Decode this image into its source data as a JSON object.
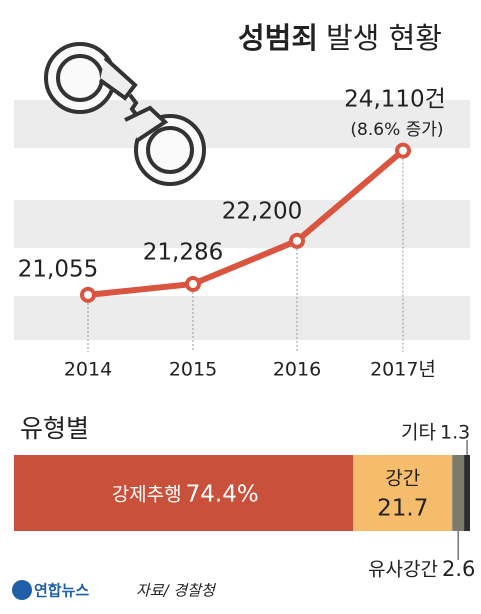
{
  "title_parts": [
    "성범죄",
    "발생 현황"
  ],
  "chart_data": [
    {
      "type": "line",
      "categories": [
        "2014",
        "2015",
        "2016",
        "2017년"
      ],
      "values": [
        21055,
        21286,
        22200,
        24110
      ],
      "value_labels": [
        "21,055",
        "21,286",
        "22,200",
        "24,110건"
      ],
      "annotation": "(8.6% 증가)",
      "color": "#d9553f",
      "ylim": [
        20100,
        25500
      ]
    },
    {
      "type": "stacked-bar",
      "title": "유형별",
      "categories": [
        "강제추행",
        "강간",
        "유사강간",
        "기타"
      ],
      "values": [
        74.4,
        21.7,
        2.6,
        1.3
      ],
      "value_labels": [
        "74.4%",
        "21.7",
        "2.6",
        "1.3"
      ],
      "colors": [
        "#c9503a",
        "#f5bd6b",
        "#7b7b6c",
        "#2e2e2e"
      ],
      "xlim": [
        0,
        100
      ]
    }
  ],
  "source": "자료/ 경찰청",
  "logo": "연합뉴스"
}
